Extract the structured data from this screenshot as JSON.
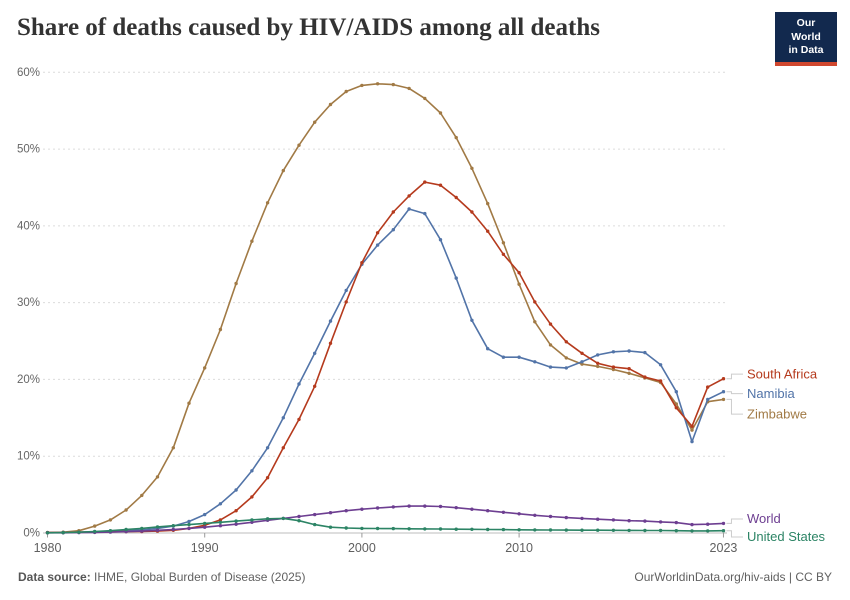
{
  "header": {
    "title": "Share of deaths caused by HIV/AIDS among all deaths",
    "logo": {
      "line1": "Our World",
      "line2": "in Data",
      "bg_color": "#12294E",
      "stripe_color": "#D0472E"
    }
  },
  "footer": {
    "source_label": "Data source:",
    "source_text": " IHME, Global Burden of Disease (2025)",
    "attribution": "OurWorldinData.org/hiv-aids | CC BY"
  },
  "chart_data": {
    "type": "line",
    "title": "Share of deaths caused by HIV/AIDS among all deaths",
    "xlabel": "",
    "ylabel": "",
    "ylim": [
      0,
      60
    ],
    "grid": "horizontal-dashed",
    "legend_position": "right-end-labels",
    "x_ticks": [
      1980,
      1990,
      2000,
      2010,
      2023
    ],
    "y_ticks": [
      {
        "v": 0,
        "label": "0%"
      },
      {
        "v": 10,
        "label": "10%"
      },
      {
        "v": 20,
        "label": "20%"
      },
      {
        "v": 30,
        "label": "30%"
      },
      {
        "v": 40,
        "label": "40%"
      },
      {
        "v": 50,
        "label": "50%"
      },
      {
        "v": 60,
        "label": "60%"
      }
    ],
    "years": [
      1980,
      1981,
      1982,
      1983,
      1984,
      1985,
      1986,
      1987,
      1988,
      1989,
      1990,
      1991,
      1992,
      1993,
      1994,
      1995,
      1996,
      1997,
      1998,
      1999,
      2000,
      2001,
      2002,
      2003,
      2004,
      2005,
      2006,
      2007,
      2008,
      2009,
      2010,
      2011,
      2012,
      2013,
      2014,
      2015,
      2016,
      2017,
      2018,
      2019,
      2020,
      2021,
      2022,
      2023
    ],
    "series": [
      {
        "name": "South Africa",
        "color": "#B53A1D",
        "values": [
          0.05,
          0.07,
          0.1,
          0.12,
          0.15,
          0.18,
          0.2,
          0.25,
          0.35,
          0.6,
          1.0,
          1.7,
          2.9,
          4.7,
          7.2,
          11.1,
          14.8,
          19.1,
          24.7,
          30.1,
          35.2,
          39.1,
          41.8,
          43.9,
          45.7,
          45.3,
          43.7,
          41.8,
          39.3,
          36.3,
          33.9,
          30.1,
          27.2,
          24.9,
          23.4,
          22.1,
          21.6,
          21.4,
          20.3,
          19.8,
          16.3,
          13.9,
          19.0,
          20.1
        ]
      },
      {
        "name": "Namibia",
        "color": "#5274A8",
        "values": [
          0.05,
          0.07,
          0.1,
          0.15,
          0.2,
          0.3,
          0.4,
          0.6,
          0.9,
          1.5,
          2.4,
          3.8,
          5.6,
          8.1,
          11.1,
          15.0,
          19.4,
          23.4,
          27.6,
          31.6,
          35.0,
          37.5,
          39.5,
          42.2,
          41.6,
          38.2,
          33.2,
          27.7,
          24.0,
          22.9,
          22.9,
          22.3,
          21.6,
          21.5,
          22.3,
          23.2,
          23.6,
          23.7,
          23.5,
          21.9,
          18.4,
          11.9,
          17.4,
          18.4
        ]
      },
      {
        "name": "Zimbabwe",
        "color": "#A17A45",
        "values": [
          0.05,
          0.1,
          0.3,
          0.9,
          1.7,
          3.0,
          4.9,
          7.3,
          11.1,
          16.9,
          21.5,
          26.5,
          32.5,
          38.0,
          43.0,
          47.2,
          50.5,
          53.5,
          55.8,
          57.5,
          58.3,
          58.5,
          58.4,
          57.9,
          56.6,
          54.7,
          51.5,
          47.5,
          42.9,
          37.8,
          32.4,
          27.5,
          24.5,
          22.8,
          22.0,
          21.7,
          21.3,
          20.8,
          20.2,
          19.6,
          16.8,
          13.4,
          17.1,
          17.4
        ]
      },
      {
        "name": "World",
        "color": "#6D3E91",
        "values": [
          0.02,
          0.03,
          0.05,
          0.08,
          0.12,
          0.18,
          0.25,
          0.35,
          0.45,
          0.6,
          0.75,
          0.95,
          1.15,
          1.4,
          1.65,
          1.9,
          2.15,
          2.4,
          2.65,
          2.9,
          3.1,
          3.25,
          3.4,
          3.5,
          3.5,
          3.45,
          3.3,
          3.1,
          2.9,
          2.7,
          2.5,
          2.3,
          2.15,
          2.0,
          1.9,
          1.8,
          1.7,
          1.6,
          1.55,
          1.45,
          1.35,
          1.1,
          1.15,
          1.25
        ]
      },
      {
        "name": "United States",
        "color": "#2C8465",
        "values": [
          0.03,
          0.05,
          0.1,
          0.2,
          0.3,
          0.45,
          0.6,
          0.8,
          0.95,
          1.1,
          1.25,
          1.4,
          1.55,
          1.7,
          1.85,
          1.9,
          1.6,
          1.1,
          0.75,
          0.65,
          0.6,
          0.58,
          0.57,
          0.55,
          0.54,
          0.52,
          0.5,
          0.48,
          0.46,
          0.44,
          0.42,
          0.4,
          0.39,
          0.38,
          0.37,
          0.36,
          0.35,
          0.34,
          0.33,
          0.32,
          0.3,
          0.28,
          0.28,
          0.3
        ]
      }
    ]
  }
}
